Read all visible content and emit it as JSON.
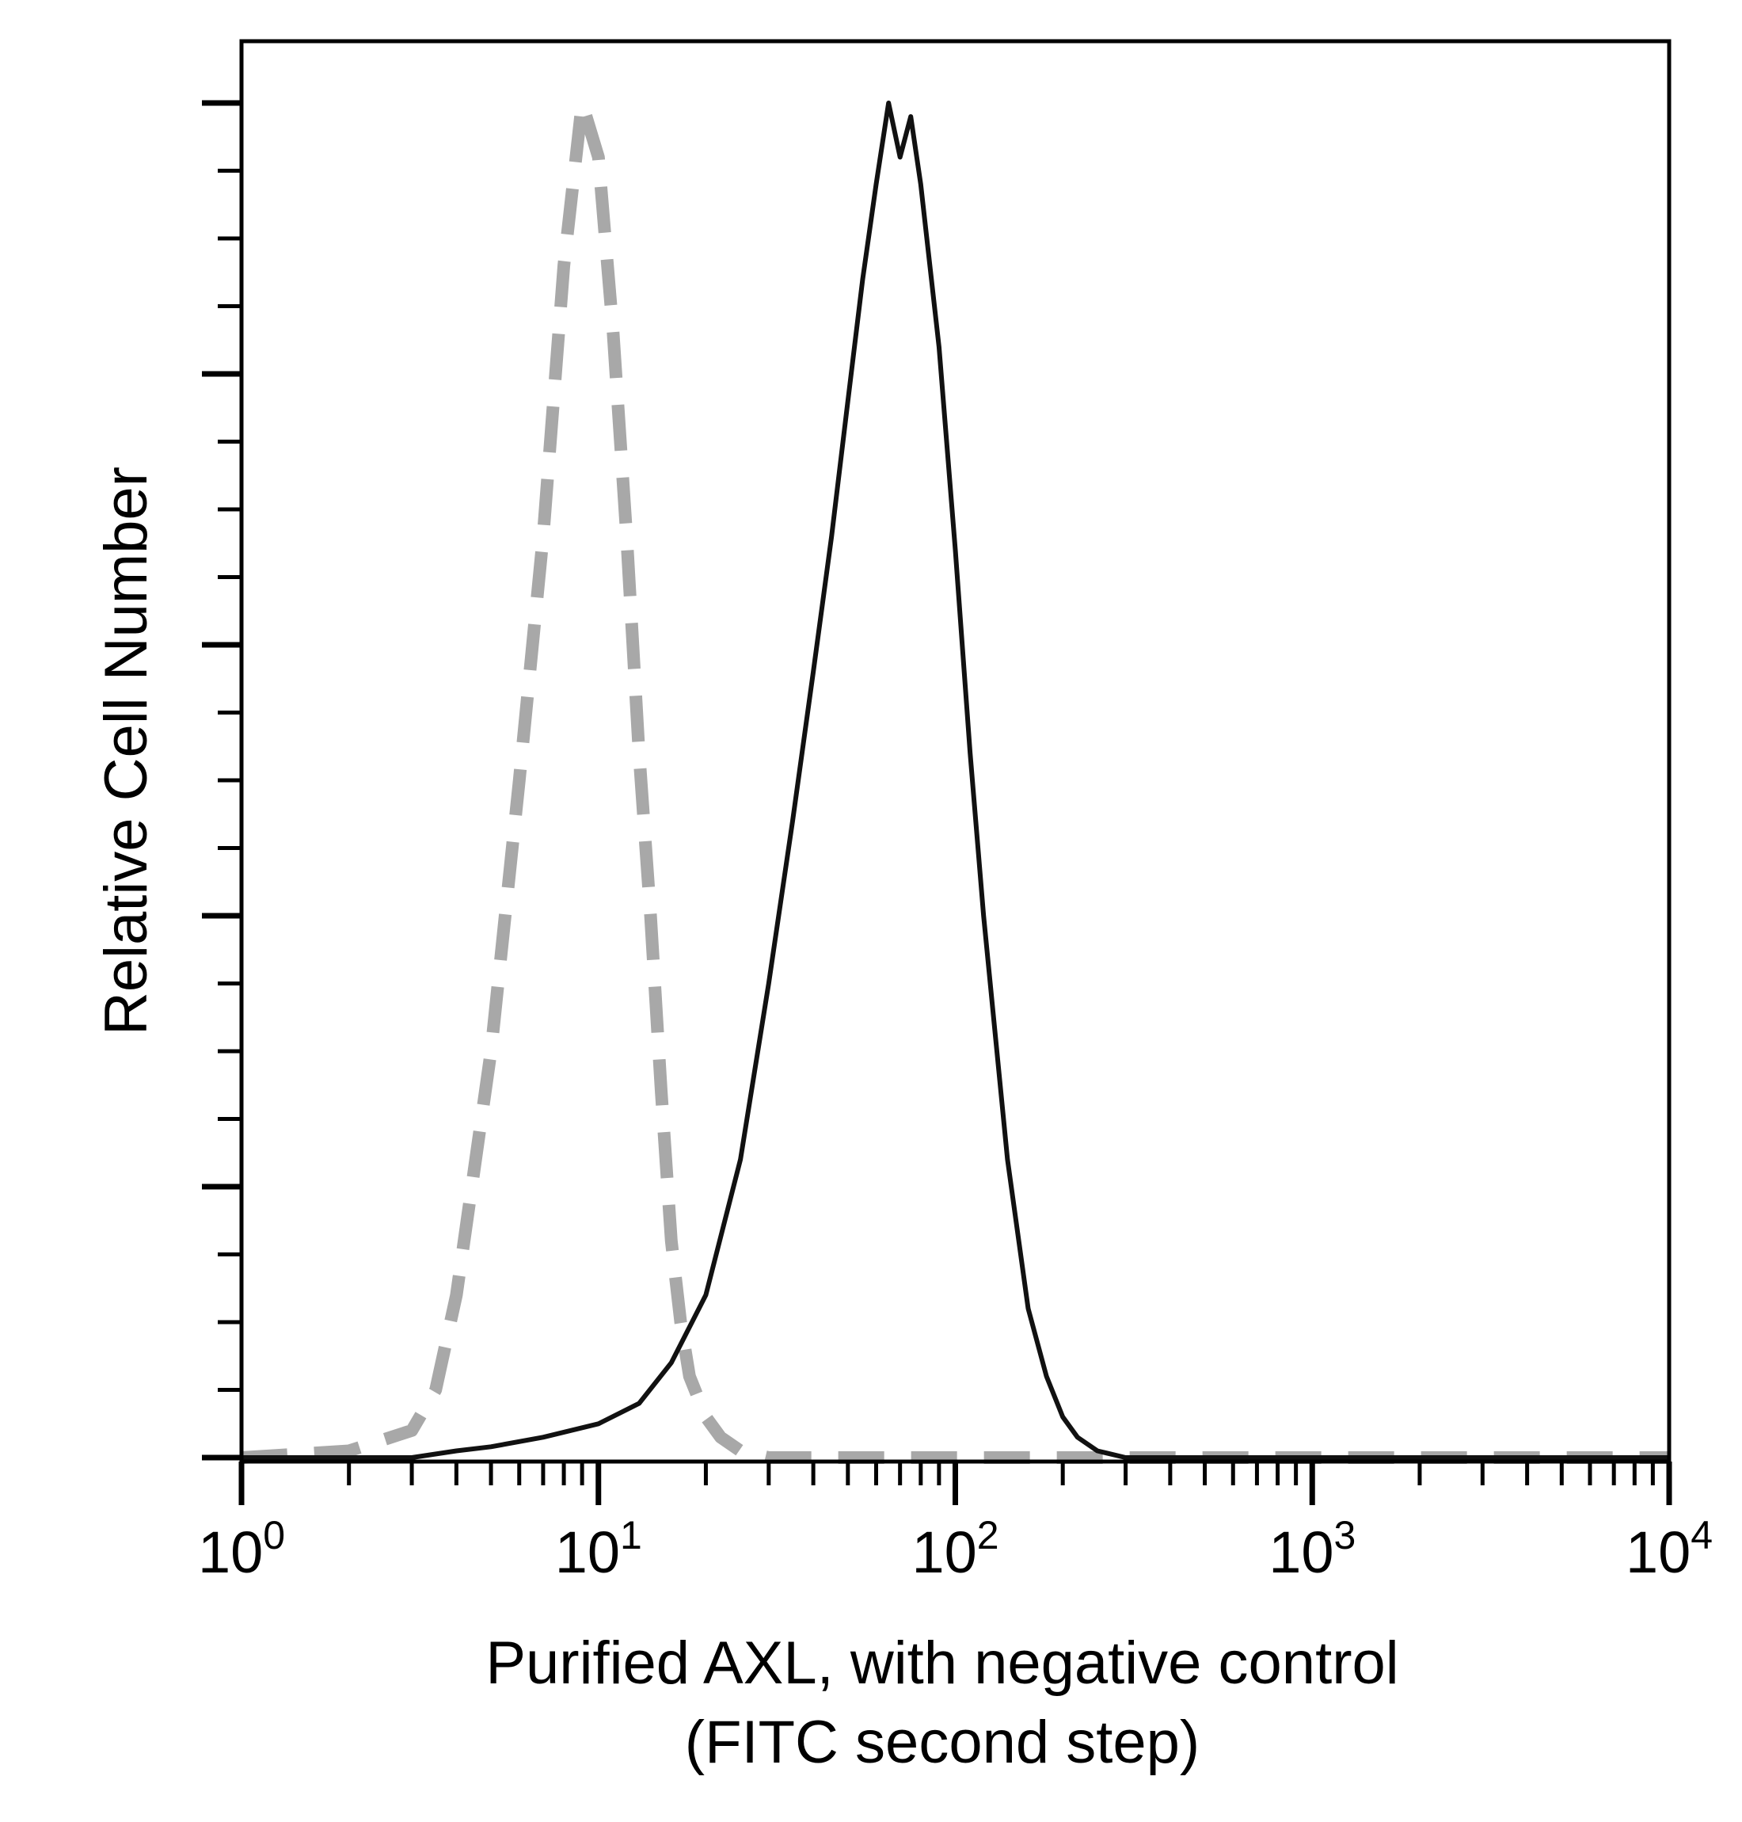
{
  "chart_data": {
    "type": "line",
    "title": "",
    "xlabel_line1": "Purified AXL, with negative control",
    "xlabel_line2": "(FITC second step)",
    "ylabel": "Relative Cell Number",
    "x_scale": "log",
    "xlim": [
      1,
      10000
    ],
    "ylim": [
      0,
      100
    ],
    "grid": false,
    "legend": "none",
    "x_ticks": [
      {
        "value": 1,
        "base": "10",
        "exp": "0"
      },
      {
        "value": 10,
        "base": "10",
        "exp": "1"
      },
      {
        "value": 100,
        "base": "10",
        "exp": "2"
      },
      {
        "value": 1000,
        "base": "10",
        "exp": "3"
      },
      {
        "value": 10000,
        "base": "10",
        "exp": "4"
      }
    ],
    "y_major_ticks": [
      0,
      20,
      40,
      60,
      80,
      100
    ],
    "y_minor_step": 5,
    "series": [
      {
        "style": "dashed",
        "color": "#a8a8a8",
        "x": [
          1,
          2,
          3,
          3.5,
          4,
          5,
          6,
          7,
          8,
          9,
          10,
          11,
          12,
          13,
          14,
          15,
          16,
          17,
          18,
          20,
          22,
          25,
          30,
          40,
          100,
          10000
        ],
        "y": [
          0,
          0.5,
          2,
          5,
          12,
          30,
          50,
          68,
          88,
          100,
          96,
          83,
          68,
          52,
          40,
          27,
          16,
          10,
          6,
          3,
          1.5,
          0.5,
          0,
          0,
          0,
          0
        ]
      },
      {
        "style": "solid",
        "color": "#111111",
        "x": [
          1,
          3,
          4,
          5,
          7,
          10,
          13,
          16,
          20,
          25,
          30,
          35,
          40,
          45,
          50,
          55,
          60,
          65,
          70,
          75,
          80,
          90,
          100,
          110,
          120,
          140,
          160,
          180,
          200,
          220,
          250,
          300,
          10000
        ],
        "y": [
          0,
          0,
          0.5,
          0.8,
          1.5,
          2.5,
          4,
          7,
          12,
          22,
          35,
          47,
          58,
          68,
          78,
          87,
          94,
          100,
          96,
          99,
          94,
          82,
          67,
          52,
          40,
          22,
          11,
          6,
          3,
          1.5,
          0.5,
          0,
          0
        ]
      }
    ]
  }
}
